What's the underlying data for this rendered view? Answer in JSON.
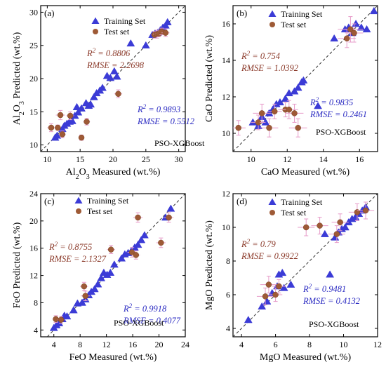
{
  "colors": {
    "train": "#3b3bd6",
    "test": "#9e5a36",
    "test_error": "#e79bc9",
    "train_stat": "#2b2bc2",
    "test_stat": "#8b3a2a"
  },
  "chart_data": [
    {
      "type": "scatter",
      "panel": "(a)",
      "xlabel_parts": [
        "Al",
        "2",
        "O",
        "3",
        " Measured (wt.%)"
      ],
      "ylabel_parts": [
        "Al",
        "2",
        "O",
        "3",
        " Predicted (wt.%)"
      ],
      "xlim": [
        9,
        31
      ],
      "ylim": [
        9,
        31
      ],
      "xticks": [
        10,
        15,
        20,
        25,
        30
      ],
      "yticks": [
        10,
        15,
        20,
        25,
        30
      ],
      "legend": [
        "Training Set",
        "Test set"
      ],
      "method": "PSO-XGBoost",
      "test_stats": {
        "r2_label": "R",
        "r2_sup": "2",
        "r2_value": " = 0.8806",
        "rmse": "RMSE = 2.2698"
      },
      "train_stats": {
        "r2_label": "R",
        "r2_sup": "2",
        "r2_value": " = 0.9893",
        "rmse": "RMSE = 0.5512"
      },
      "training": [
        [
          11.2,
          11.1
        ],
        [
          11.5,
          11.4
        ],
        [
          12.3,
          12.4
        ],
        [
          12.6,
          12.9
        ],
        [
          13.0,
          13.2
        ],
        [
          13.4,
          13.5
        ],
        [
          13.8,
          13.6
        ],
        [
          14.2,
          14.4
        ],
        [
          14.7,
          14.9
        ],
        [
          14.5,
          15.7
        ],
        [
          15.2,
          15.5
        ],
        [
          15.9,
          16.3
        ],
        [
          16.3,
          15.9
        ],
        [
          16.6,
          16.1
        ],
        [
          17.1,
          17.2
        ],
        [
          17.5,
          17.8
        ],
        [
          18.0,
          18.2
        ],
        [
          18.4,
          18.6
        ],
        [
          19.1,
          20.4
        ],
        [
          19.6,
          20.1
        ],
        [
          20.2,
          21.1
        ],
        [
          20.6,
          20.3
        ],
        [
          22.7,
          25.3
        ],
        [
          25.0,
          25.0
        ],
        [
          26.0,
          26.6
        ],
        [
          26.4,
          26.8
        ],
        [
          26.8,
          26.9
        ],
        [
          27.2,
          27.3
        ],
        [
          27.6,
          27.7
        ],
        [
          28.0,
          28.0
        ],
        [
          28.3,
          28.5
        ]
      ],
      "test": [
        [
          10.6,
          12.6
        ],
        [
          11.6,
          12.6
        ],
        [
          12.0,
          14.5
        ],
        [
          12.3,
          11.6
        ],
        [
          13.5,
          14.4
        ],
        [
          15.2,
          11.1
        ],
        [
          16.0,
          13.5
        ],
        [
          20.8,
          17.7
        ],
        [
          26.3,
          26.6
        ],
        [
          26.7,
          26.7
        ],
        [
          27.0,
          26.8
        ],
        [
          27.4,
          27.1
        ],
        [
          28.0,
          26.9
        ]
      ],
      "test_err": [
        0.6,
        0.4,
        0.7,
        0.5,
        0.6,
        0.4,
        0.5,
        0.6,
        0.5,
        0.6,
        0.5,
        0.5,
        0.6
      ]
    },
    {
      "type": "scatter",
      "panel": "(b)",
      "xlabel_parts": [
        "CaO Measured (wt.%)"
      ],
      "ylabel_parts": [
        "CaO Predicted (wt.%)"
      ],
      "xlim": [
        9,
        17
      ],
      "ylim": [
        9,
        17
      ],
      "xticks": [
        10,
        12,
        14,
        16
      ],
      "yticks": [
        10,
        12,
        14,
        16
      ],
      "legend": [
        "Training Set",
        "Test set"
      ],
      "method": "PSO-XGBoost",
      "test_stats": {
        "r2_label": "R",
        "r2_sup": "2",
        "r2_value": " = 0.754",
        "rmse": "RMSE = 1.0392"
      },
      "train_stats": {
        "r2_label": "R",
        "r2_sup": "2",
        "r2_value": " = 0.9835",
        "rmse": "RMSE = 0.2461"
      },
      "training": [
        [
          10.1,
          10.6
        ],
        [
          10.4,
          10.4
        ],
        [
          10.6,
          10.9
        ],
        [
          10.8,
          10.6
        ],
        [
          11.0,
          11.1
        ],
        [
          11.2,
          11.3
        ],
        [
          11.4,
          11.6
        ],
        [
          11.6,
          11.7
        ],
        [
          11.9,
          11.9
        ],
        [
          12.1,
          12.2
        ],
        [
          12.4,
          12.3
        ],
        [
          12.6,
          12.5
        ],
        [
          12.8,
          12.8
        ],
        [
          12.9,
          12.9
        ],
        [
          13.7,
          11.5
        ],
        [
          14.6,
          15.2
        ],
        [
          15.2,
          15.7
        ],
        [
          15.4,
          15.8
        ],
        [
          15.6,
          15.5
        ],
        [
          15.8,
          16.0
        ],
        [
          16.1,
          15.8
        ],
        [
          16.4,
          15.7
        ],
        [
          16.8,
          16.7
        ]
      ],
      "test": [
        [
          9.3,
          10.3
        ],
        [
          10.4,
          10.6
        ],
        [
          10.6,
          11.1
        ],
        [
          11.0,
          10.3
        ],
        [
          11.3,
          11.2
        ],
        [
          11.9,
          11.3
        ],
        [
          12.1,
          11.3
        ],
        [
          12.4,
          11.1
        ],
        [
          12.6,
          10.3
        ],
        [
          15.3,
          15.2
        ],
        [
          15.5,
          15.7
        ],
        [
          15.7,
          15.5
        ]
      ],
      "test_err": [
        0.4,
        0.4,
        0.5,
        0.5,
        0.4,
        0.4,
        0.5,
        0.5,
        0.5,
        0.5,
        0.7,
        0.5
      ]
    },
    {
      "type": "scatter",
      "panel": "(c)",
      "xlabel_parts": [
        "FeO Measured (wt.%)"
      ],
      "ylabel_parts": [
        "FeO Predicted (wt.%)"
      ],
      "xlim": [
        2,
        24
      ],
      "ylim": [
        3,
        24
      ],
      "xticks": [
        4,
        8,
        12,
        16,
        20,
        24
      ],
      "yticks": [
        4,
        8,
        12,
        16,
        20,
        24
      ],
      "legend": [
        "Training Set",
        "Test set"
      ],
      "method": "PSO-XGBoost",
      "test_stats": {
        "r2_label": "R",
        "r2_sup": "2",
        "r2_value": " = 0.8755",
        "rmse": "RMSE = 2.1327"
      },
      "train_stats": {
        "r2_label": "R",
        "r2_sup": "2",
        "r2_value": " = 0.9918",
        "rmse": "RMSE = 0.4077"
      },
      "training": [
        [
          4.0,
          4.3
        ],
        [
          4.4,
          4.7
        ],
        [
          4.8,
          5.0
        ],
        [
          5.3,
          5.6
        ],
        [
          5.6,
          6.1
        ],
        [
          6.0,
          6.0
        ],
        [
          7.0,
          6.9
        ],
        [
          7.6,
          7.9
        ],
        [
          8.3,
          8.0
        ],
        [
          8.8,
          8.5
        ],
        [
          9.3,
          9.1
        ],
        [
          9.7,
          9.6
        ],
        [
          10.2,
          10.0
        ],
        [
          10.7,
          10.7
        ],
        [
          11.2,
          11.6
        ],
        [
          11.6,
          12.4
        ],
        [
          12.1,
          12.1
        ],
        [
          12.6,
          12.4
        ],
        [
          13.2,
          13.6
        ],
        [
          14.3,
          14.5
        ],
        [
          14.8,
          15.1
        ],
        [
          15.3,
          15.3
        ],
        [
          15.8,
          15.6
        ],
        [
          16.3,
          16.1
        ],
        [
          16.8,
          16.5
        ],
        [
          17.3,
          17.2
        ],
        [
          17.8,
          17.9
        ],
        [
          21.0,
          20.5
        ],
        [
          21.8,
          21.8
        ]
      ],
      "test": [
        [
          4.3,
          5.6
        ],
        [
          5.1,
          5.5
        ],
        [
          8.6,
          10.4
        ],
        [
          8.8,
          9.0
        ],
        [
          12.7,
          15.8
        ],
        [
          15.9,
          15.4
        ],
        [
          16.5,
          15.0
        ],
        [
          16.8,
          20.5
        ],
        [
          20.3,
          16.8
        ],
        [
          21.5,
          20.5
        ]
      ],
      "test_err": [
        0.5,
        0.5,
        0.6,
        0.7,
        0.6,
        0.7,
        0.6,
        0.7,
        0.7,
        0.7
      ]
    },
    {
      "type": "scatter",
      "panel": "(d)",
      "xlabel_parts": [
        "MgO Measured (wt.%)"
      ],
      "ylabel_parts": [
        "MgO Predicted (wt.%)"
      ],
      "xlim": [
        3.5,
        12
      ],
      "ylim": [
        3.5,
        12
      ],
      "xticks": [
        4,
        6,
        8,
        10,
        12
      ],
      "yticks": [
        4,
        6,
        8,
        10,
        12
      ],
      "legend": [
        "Training Set",
        "Test set"
      ],
      "method": "PSO-XGBoost",
      "test_stats": {
        "r2_label": "R",
        "r2_sup": "2",
        "r2_value": " = 0.79",
        "rmse": "RMSE = 0.9922"
      },
      "train_stats": {
        "r2_label": "R",
        "r2_sup": "2",
        "r2_value": " = 0.9481",
        "rmse": "RMSE = 0.4132"
      },
      "training": [
        [
          4.4,
          4.5
        ],
        [
          5.2,
          5.3
        ],
        [
          5.5,
          5.6
        ],
        [
          5.8,
          6.1
        ],
        [
          6.1,
          6.5
        ],
        [
          6.2,
          7.2
        ],
        [
          6.4,
          7.3
        ],
        [
          6.5,
          6.4
        ],
        [
          6.9,
          6.6
        ],
        [
          8.9,
          9.6
        ],
        [
          9.2,
          7.2
        ],
        [
          9.5,
          9.4
        ],
        [
          9.7,
          9.7
        ],
        [
          9.9,
          9.9
        ],
        [
          10.1,
          10.0
        ],
        [
          10.3,
          10.3
        ],
        [
          10.5,
          10.5
        ],
        [
          10.7,
          10.6
        ],
        [
          10.9,
          10.8
        ],
        [
          11.1,
          11.0
        ],
        [
          11.3,
          11.2
        ]
      ],
      "test": [
        [
          5.4,
          5.9
        ],
        [
          5.6,
          6.6
        ],
        [
          6.0,
          6.0
        ],
        [
          6.2,
          6.5
        ],
        [
          7.8,
          10.0
        ],
        [
          8.6,
          10.1
        ],
        [
          9.6,
          9.6
        ],
        [
          9.8,
          10.3
        ],
        [
          10.8,
          10.9
        ],
        [
          11.3,
          11.0
        ]
      ],
      "test_err": [
        0.5,
        0.5,
        0.4,
        0.4,
        0.5,
        0.5,
        0.5,
        0.5,
        0.5,
        0.5
      ]
    }
  ]
}
